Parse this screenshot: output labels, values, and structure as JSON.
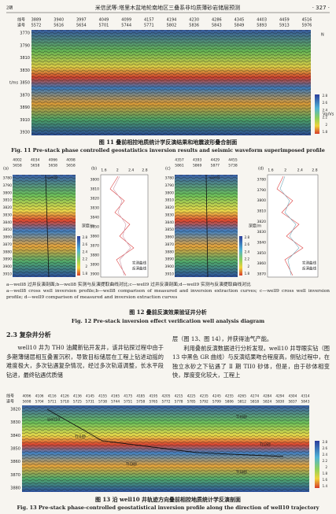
{
  "header": {
    "left": "2期",
    "title": "米信武等:塔里木盆地轮南地区三叠系非均质薄砂岩储层预测",
    "page": "· 327 ·"
  },
  "fig11": {
    "line_label": "线号",
    "trace_label": "道号",
    "lines": [
      3889,
      3940,
      3997,
      4049,
      4099,
      4157,
      4194,
      4230,
      4286,
      4345,
      4403,
      4459,
      4516
    ],
    "traces": [
      5572,
      5616,
      5654,
      5701,
      5744,
      5771,
      5802,
      5836,
      5843,
      5849,
      5893,
      5913,
      5976
    ],
    "time_label": "t/ms",
    "times": [
      3770,
      3790,
      3810,
      3830,
      3850,
      3870,
      3890,
      3910,
      3930
    ],
    "colorbar_ticks": [
      2.8,
      2.6,
      2.4,
      2.2,
      2.0,
      1.8
    ],
    "colorbar_label": "Vp/Vs",
    "north": "N",
    "caption_cn": "图 11  叠前相控地质统计学反演结果和地震波形叠合剖面",
    "caption_en": "Fig. 11   Pre-stack phase controlled geostatistics inversion results and seismic waveform superimposed profile"
  },
  "fig12": {
    "panels": [
      {
        "tag": "(a)",
        "lines": [
          4002,
          4034,
          4066,
          4098
        ],
        "traces": [
          5658,
          5658,
          5658,
          5658
        ],
        "well": "well8",
        "times": [
          3780,
          3790,
          3800,
          3810,
          3820,
          3830,
          3840,
          3850,
          3860,
          3870,
          3880,
          3890,
          3900,
          3910
        ]
      },
      {
        "tag": "(b)",
        "xticks": [
          1.6,
          2.0,
          2.4,
          2.8
        ],
        "yticks": [
          3800,
          3810,
          3820,
          3830,
          3840,
          3850,
          3860,
          3870,
          3880,
          3890,
          3900
        ],
        "ylabel": "深度/m",
        "legend": [
          "实测曲线",
          "反演曲线"
        ]
      },
      {
        "tag": "(c)",
        "lines": [
          4357,
          4393,
          4429,
          4455
        ],
        "traces": [
          5861,
          5869,
          5877,
          5738
        ],
        "well": "well9",
        "times": [
          3780,
          3790,
          3800,
          3810,
          3820,
          3830,
          3840,
          3850,
          3860,
          3870,
          3880,
          3890,
          3900,
          3910
        ]
      },
      {
        "tag": "(d)",
        "xticks": [
          1.6,
          2.0,
          2.4,
          2.8
        ],
        "yticks": [
          3780,
          3790,
          3800,
          3810,
          3820,
          3830,
          3840,
          3850,
          3860,
          3870
        ],
        "ylabel": "深度/m",
        "legend": [
          "实测曲线",
          "反演曲线"
        ]
      }
    ],
    "colorbar_ticks": [
      2.8,
      2.6,
      2.4,
      2.2,
      2.0,
      1.8
    ],
    "note_cn": "a—well8 过井反演剖面;b—well8 实测与反演提取曲线对比;c—well9 过井反演剖面;d—well9 实测与反演提取曲线对比",
    "note_en": "a—well8 cross well inversion profile;b—well8 comparison of measured and inversion extraction curves; c—well9 cross well inversion profile; d—well9 comparison of measured and inversion extraction curves",
    "caption_cn": "图 12  叠前反演效果验证井分析",
    "caption_en": "Fig. 12   Pre-stack inversion effect verification well analysis diagram"
  },
  "section": {
    "heading": "2.3  复杂井分析",
    "left": "well10 井为 TH0 油藏新钻开发井，该井钻探过程中由于多期薄储层相互叠置沉积，导致目标储层在工程上钻进动摇的难度极大，多次钻遇复杂情况，经过多次轨道调整，长水平段钻进，最终钻遇优质储",
    "right": [
      "层（图 13、图 14），并获得油气产能。",
      "利用叠前反演数据进行分析发现，well10 井导眼实钻（图 13 中黑色 GR 曲线）与反演结果吻合程度高，侧钻过程中，在独立水砂之下钻遇了 Ⅱ 期 TII0 砂体，但是，由于砂体相变快，厚度变化较大，工程上"
    ]
  },
  "fig13": {
    "line_label": "线号",
    "trace_label": "道号",
    "lines": [
      4096,
      4106,
      4116,
      4126,
      4136,
      4145,
      4155,
      4165,
      4175,
      4185,
      4195,
      4205,
      4215,
      4225,
      4235,
      4245,
      4255,
      4265,
      4274,
      4284,
      4294,
      4304,
      4314
    ],
    "traces": [
      5698,
      5704,
      5711,
      5718,
      5725,
      5731,
      5738,
      5744,
      5751,
      5758,
      5765,
      5772,
      5778,
      5785,
      5792,
      5799,
      5806,
      5812,
      5818,
      5824,
      5830,
      5837,
      5843
    ],
    "times": [
      3820,
      3830,
      3840,
      3850,
      3860,
      3870,
      3880
    ],
    "well": "well10",
    "sands": [
      "TII0砂",
      "TII1砂",
      "TII2砂",
      "TII3砂",
      "TII4砂"
    ],
    "colorbar_ticks": [
      2.8,
      2.6,
      2.4,
      2.2,
      2.0,
      1.8,
      1.6,
      1.4
    ],
    "caption_cn": "图 13  沿 well10 井轨迹方向叠前相控地质统计学反演剖面",
    "caption_en": "Fig. 13   Pre-stack phase-controlled geostatistical inversion profile along the direction of well10 trajectory"
  }
}
